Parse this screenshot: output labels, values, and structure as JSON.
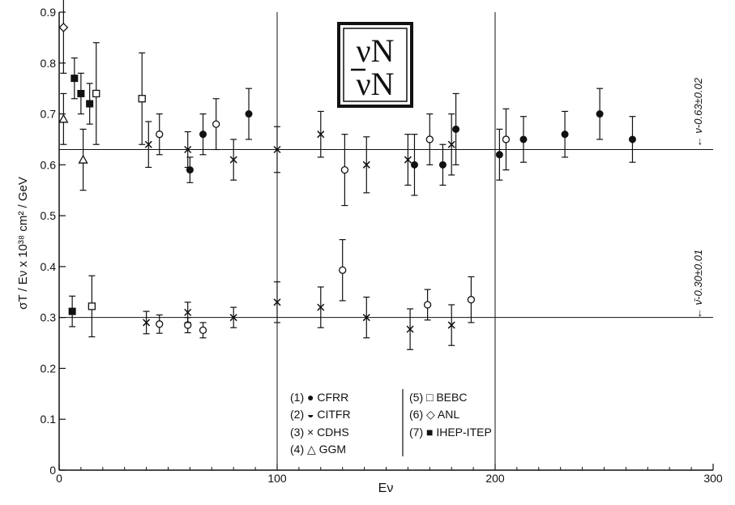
{
  "chart_data": {
    "type": "scatter",
    "xlabel": "Eν",
    "ylabel": "σT / Eν x 10³⁸ cm² / GeV",
    "xlim": [
      0,
      300
    ],
    "ylim": [
      0,
      0.9
    ],
    "x_ticks": [
      0,
      100,
      200,
      300
    ],
    "x_tick_labels": [
      "0",
      "100",
      "200",
      "300"
    ],
    "y_ticks": [
      0,
      0.1,
      0.2,
      0.3,
      0.4,
      0.5,
      0.6,
      0.7,
      0.8,
      0.9
    ],
    "y_tick_labels": [
      "0",
      "0.1",
      "0.2",
      "0.3",
      "0.4",
      "0.5",
      "0.6",
      "0.7",
      "0.8",
      "0.9"
    ],
    "grid": "vertical lines at E=100 and E=200",
    "reaction_box": {
      "line1": "νN",
      "line2": "νN",
      "overline_second": true
    },
    "fit_lines": [
      {
        "name": "neutrino",
        "value": 0.63,
        "label": "← ν-0.63±0.02"
      },
      {
        "name": "antineutrino",
        "value": 0.3,
        "label": "← ν̄-0.30±0.01"
      }
    ],
    "legend": [
      {
        "id": 1,
        "text": "(1) ● CFRR"
      },
      {
        "id": 2,
        "text": "(2) ◒ CITFR"
      },
      {
        "id": 3,
        "text": "(3) × CDHS"
      },
      {
        "id": 4,
        "text": "(4) △ GGM"
      },
      {
        "id": 5,
        "text": "(5) □ BEBC"
      },
      {
        "id": 6,
        "text": "(6) ◇ ANL"
      },
      {
        "id": 7,
        "text": "(7) ■ IHEP-ITEP"
      }
    ],
    "series": [
      {
        "experiment": "CFRR",
        "reaction": "neutrino",
        "points": [
          {
            "x": 60,
            "y": 0.59,
            "err": 0.025
          },
          {
            "x": 66,
            "y": 0.66,
            "err": 0.04
          },
          {
            "x": 87,
            "y": 0.7,
            "err": 0.05
          },
          {
            "x": 163,
            "y": 0.6,
            "err": 0.06
          },
          {
            "x": 176,
            "y": 0.6,
            "err": 0.04
          },
          {
            "x": 182,
            "y": 0.67,
            "err": 0.07
          },
          {
            "x": 202,
            "y": 0.62,
            "err": 0.05
          },
          {
            "x": 213,
            "y": 0.65,
            "err": 0.045
          },
          {
            "x": 232,
            "y": 0.66,
            "err": 0.045
          },
          {
            "x": 248,
            "y": 0.7,
            "err": 0.05
          },
          {
            "x": 263,
            "y": 0.65,
            "err": 0.045
          }
        ]
      },
      {
        "experiment": "CITFR",
        "reaction": "neutrino",
        "points": [
          {
            "x": 46,
            "y": 0.66,
            "err": 0.04
          },
          {
            "x": 72,
            "y": 0.68,
            "err": 0.05
          },
          {
            "x": 131,
            "y": 0.59,
            "err": 0.07
          },
          {
            "x": 170,
            "y": 0.65,
            "err": 0.05
          },
          {
            "x": 205,
            "y": 0.65,
            "err": 0.06
          }
        ]
      },
      {
        "experiment": "CITFR",
        "reaction": "antineutrino",
        "points": [
          {
            "x": 46,
            "y": 0.287,
            "err": 0.018
          },
          {
            "x": 59,
            "y": 0.285,
            "err": 0.015
          },
          {
            "x": 66,
            "y": 0.275,
            "err": 0.015
          },
          {
            "x": 130,
            "y": 0.393,
            "err": 0.06
          },
          {
            "x": 169,
            "y": 0.325,
            "err": 0.03
          },
          {
            "x": 189,
            "y": 0.335,
            "err": 0.045
          }
        ]
      },
      {
        "experiment": "CDHS",
        "reaction": "neutrino",
        "points": [
          {
            "x": 41,
            "y": 0.64,
            "err": 0.045
          },
          {
            "x": 59,
            "y": 0.63,
            "err": 0.035
          },
          {
            "x": 80,
            "y": 0.61,
            "err": 0.04
          },
          {
            "x": 100,
            "y": 0.63,
            "err": 0.045
          },
          {
            "x": 120,
            "y": 0.66,
            "err": 0.045
          },
          {
            "x": 141,
            "y": 0.6,
            "err": 0.055
          },
          {
            "x": 160,
            "y": 0.61,
            "err": 0.05
          },
          {
            "x": 180,
            "y": 0.64,
            "err": 0.06
          }
        ]
      },
      {
        "experiment": "CDHS",
        "reaction": "antineutrino",
        "points": [
          {
            "x": 40,
            "y": 0.29,
            "err": 0.022
          },
          {
            "x": 59,
            "y": 0.31,
            "err": 0.02
          },
          {
            "x": 80,
            "y": 0.3,
            "err": 0.02
          },
          {
            "x": 100,
            "y": 0.33,
            "err": 0.04
          },
          {
            "x": 120,
            "y": 0.32,
            "err": 0.04
          },
          {
            "x": 141,
            "y": 0.3,
            "err": 0.04
          },
          {
            "x": 161,
            "y": 0.277,
            "err": 0.04
          },
          {
            "x": 180,
            "y": 0.285,
            "err": 0.04
          }
        ]
      },
      {
        "experiment": "GGM",
        "reaction": "neutrino",
        "points": [
          {
            "x": 2,
            "y": 0.69,
            "err": 0.05
          },
          {
            "x": 11,
            "y": 0.61,
            "err": 0.06
          }
        ]
      },
      {
        "experiment": "BEBC",
        "reaction": "neutrino",
        "points": [
          {
            "x": 17,
            "y": 0.74,
            "err": 0.1
          },
          {
            "x": 38,
            "y": 0.73,
            "err": 0.09
          }
        ]
      },
      {
        "experiment": "BEBC",
        "reaction": "antineutrino",
        "points": [
          {
            "x": 15,
            "y": 0.322,
            "err": 0.06
          }
        ]
      },
      {
        "experiment": "ANL",
        "reaction": "neutrino",
        "points": [
          {
            "x": 2,
            "y": 0.87,
            "err": 0.09
          }
        ]
      },
      {
        "experiment": "IHEP-ITEP",
        "reaction": "neutrino",
        "points": [
          {
            "x": 7,
            "y": 0.77,
            "err": 0.04
          },
          {
            "x": 10,
            "y": 0.74,
            "err": 0.04
          },
          {
            "x": 14,
            "y": 0.72,
            "err": 0.04
          }
        ]
      },
      {
        "experiment": "IHEP-ITEP",
        "reaction": "antineutrino",
        "points": [
          {
            "x": 6,
            "y": 0.312,
            "err": 0.03
          }
        ]
      }
    ]
  }
}
